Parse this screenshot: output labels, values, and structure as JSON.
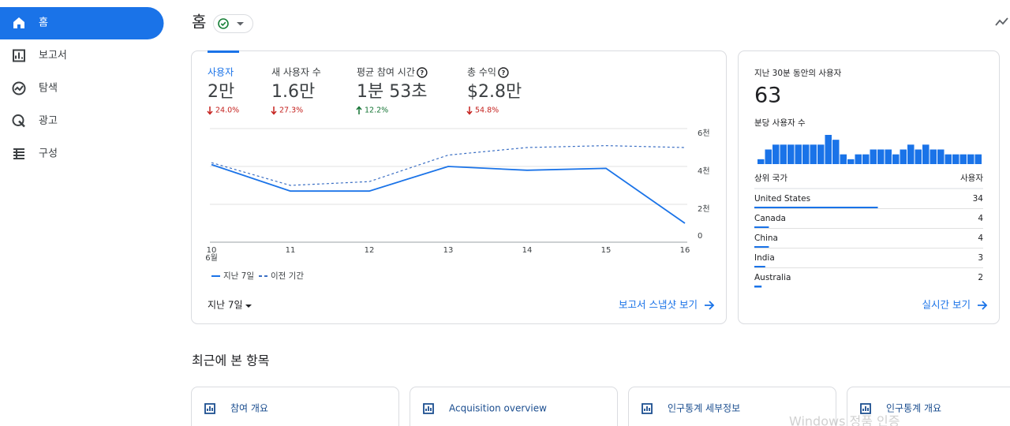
{
  "nav": {
    "items": [
      {
        "label": "홈",
        "active": true
      },
      {
        "label": "보고서"
      },
      {
        "label": "탐색"
      },
      {
        "label": "광고"
      },
      {
        "label": "구성"
      }
    ]
  },
  "header": {
    "title": "홈"
  },
  "overview": {
    "metrics": [
      {
        "label": "사용자",
        "value": "2만",
        "change": "24.0%",
        "direction": "down",
        "active": true
      },
      {
        "label": "새 사용자 수",
        "value": "1.6만",
        "change": "27.3%",
        "direction": "down"
      },
      {
        "label": "평균 참여 시간",
        "value": "1분 53초",
        "change": "12.2%",
        "direction": "up",
        "help": true
      },
      {
        "label": "총 수익",
        "value": "$2.8만",
        "change": "54.8%",
        "direction": "down",
        "help": true
      }
    ],
    "period": "지난 7일",
    "link": "보고서 스냅샷 보기"
  },
  "chart_data": {
    "type": "line",
    "categories": [
      "10",
      "11",
      "12",
      "13",
      "14",
      "15",
      "16"
    ],
    "x_sublabel": "6월",
    "ylim": [
      0,
      6000
    ],
    "yticks": [
      0,
      {
        "value": 2000,
        "label": "2천"
      },
      {
        "value": 4000,
        "label": "4천"
      },
      {
        "value": 6000,
        "label": "6천"
      }
    ],
    "grid": true,
    "series": [
      {
        "name": "지난 7일",
        "color": "#1a73e8",
        "style": "solid",
        "values": [
          4100,
          2700,
          2700,
          4000,
          3800,
          3900,
          1000
        ]
      },
      {
        "name": "이전 기간",
        "color": "#3b6fc4",
        "style": "dashed",
        "values": [
          4200,
          3000,
          3200,
          4600,
          5000,
          5100,
          5000
        ]
      }
    ]
  },
  "realtime": {
    "title": "지난 30분 동안의 사용자",
    "value": 63,
    "subtitle": "분당 사용자 수",
    "per_minute": {
      "color": "#1a73e8",
      "values": [
        1,
        3,
        4,
        4,
        4,
        4,
        4,
        4,
        4,
        6,
        5,
        2,
        1,
        2,
        2,
        3,
        3,
        3,
        2,
        3,
        4,
        3,
        4,
        3,
        3,
        2,
        2,
        2,
        2,
        2
      ]
    },
    "table": {
      "headers": [
        "상위 국가",
        "사용자"
      ],
      "rows": [
        {
          "country": "United States",
          "users": 34
        },
        {
          "country": "Canada",
          "users": 4
        },
        {
          "country": "China",
          "users": 4
        },
        {
          "country": "India",
          "users": 3
        },
        {
          "country": "Australia",
          "users": 2
        }
      ]
    },
    "link": "실시간 보기"
  },
  "recent": {
    "title": "최근에 본 항목",
    "cards": [
      "참여 개요",
      "Acquisition overview",
      "인구통계 세부정보",
      "인구통계 개요"
    ]
  },
  "watermark": "Windows 정품 인증"
}
